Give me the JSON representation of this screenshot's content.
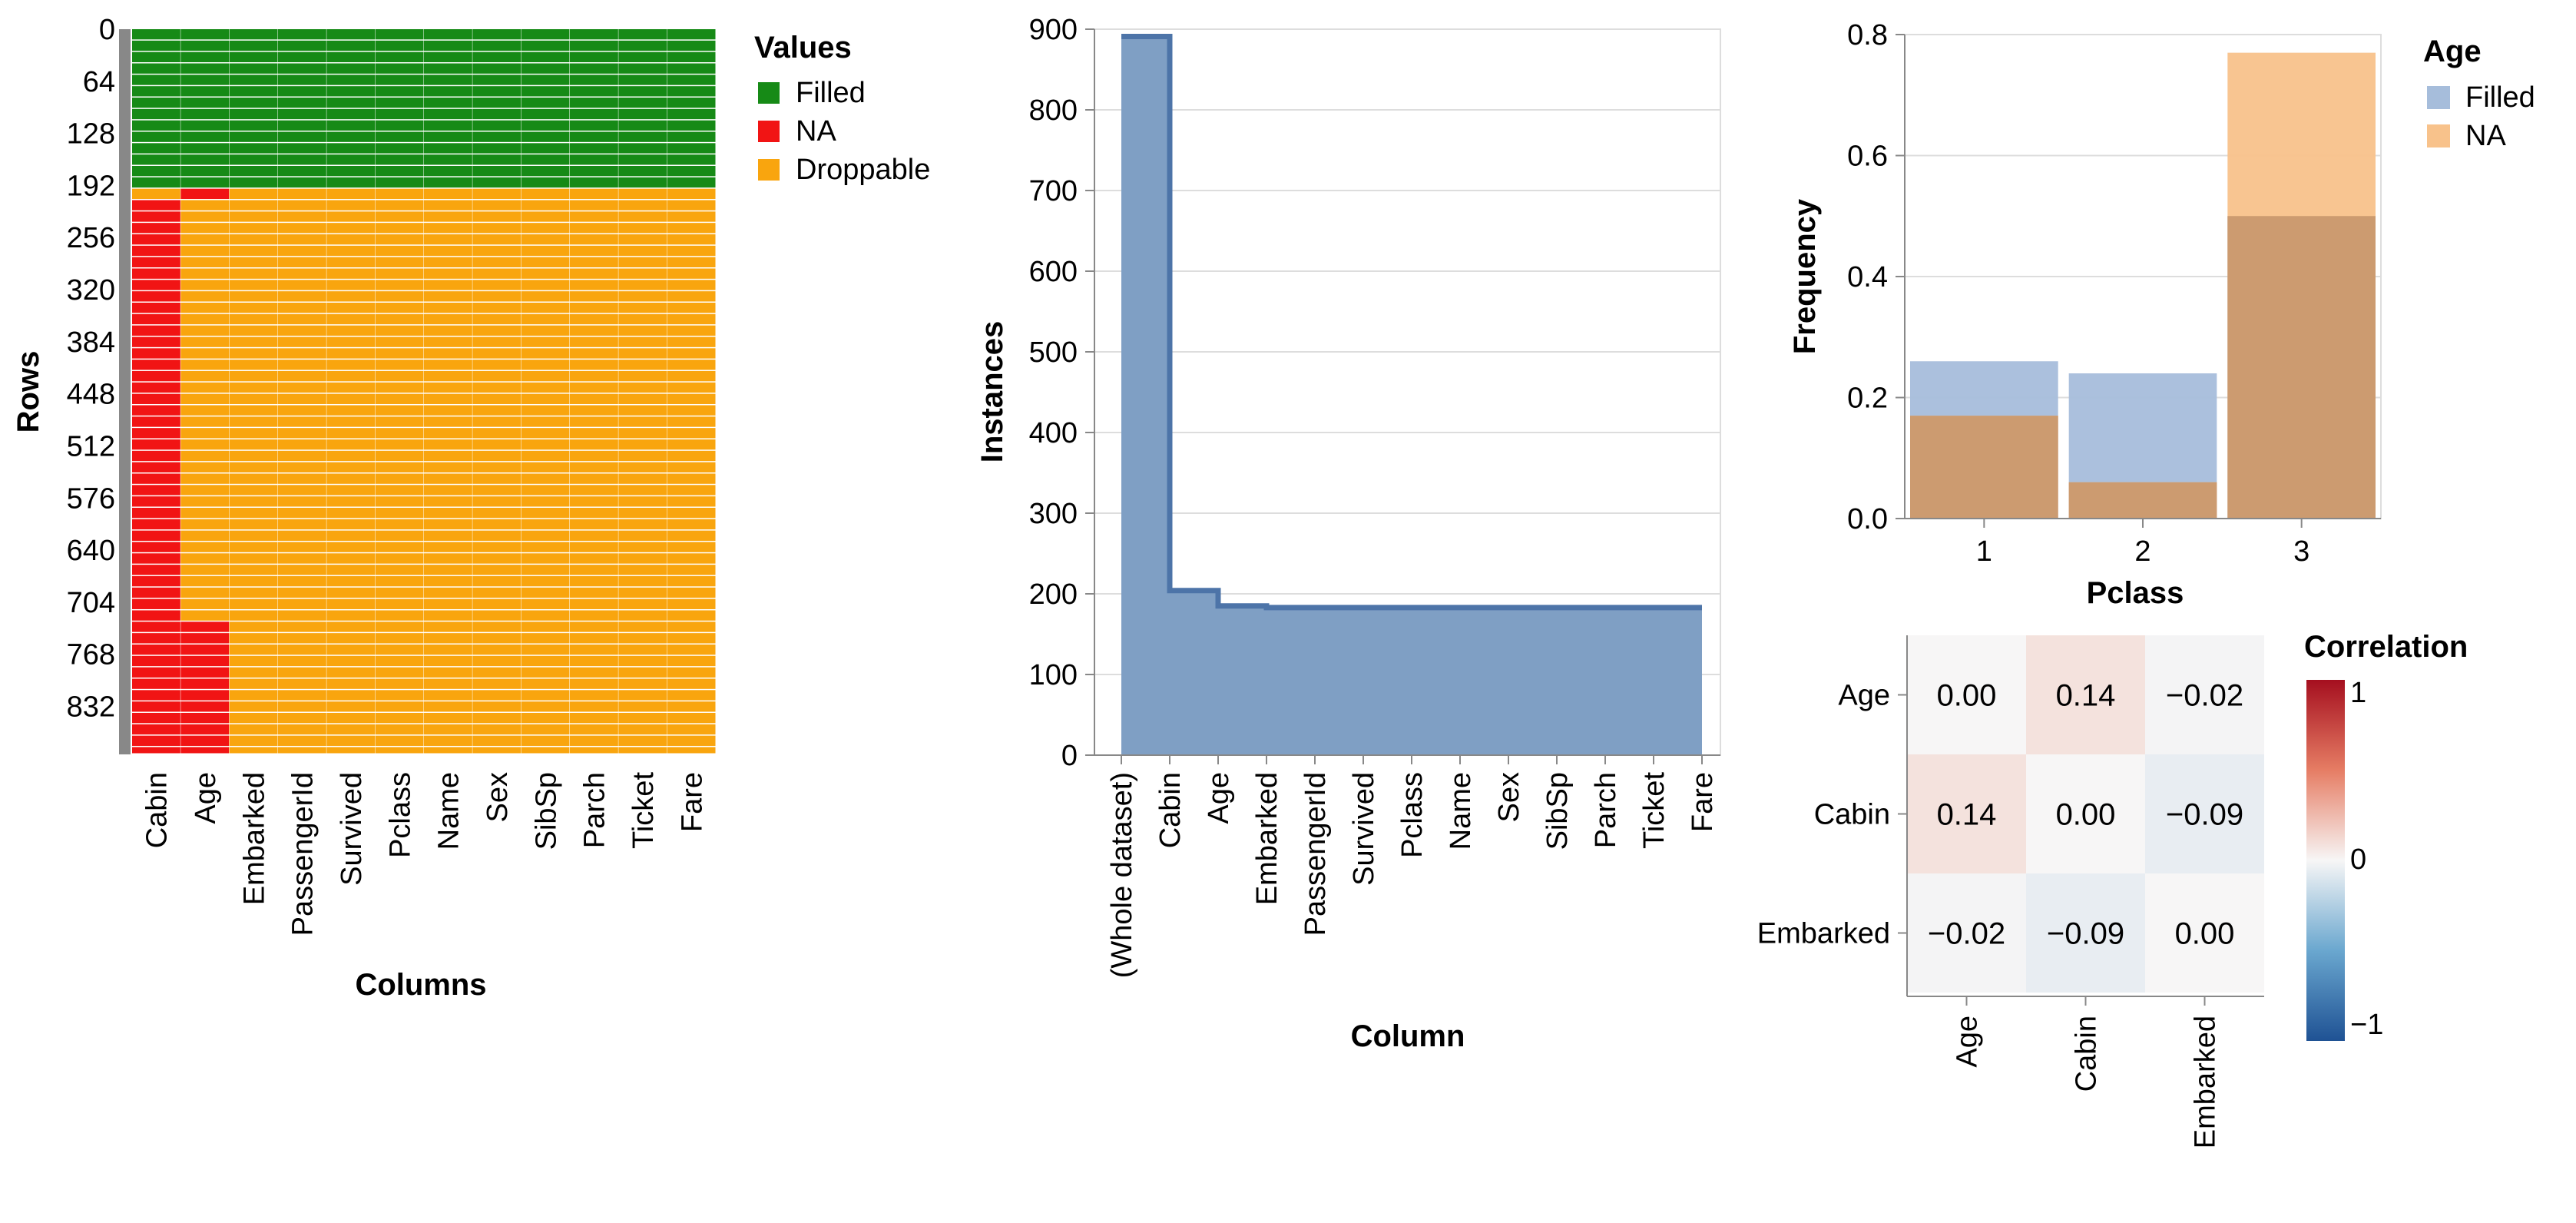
{
  "colors": {
    "filled": "#168a16",
    "na": "#f11414",
    "droppable": "#f9a50e",
    "step_fill": "#7f9fc4",
    "step_line": "#4d74a8",
    "age_filled": "#a6bddb",
    "age_na": "#f8c28b",
    "overlap": "#cc9b70",
    "left_strip": "#888888"
  },
  "chart_data": [
    {
      "type": "heatmap",
      "id": "missingness-matrix",
      "xlabel": "Columns",
      "ylabel": "Rows",
      "columns": [
        "Cabin",
        "Age",
        "Embarked",
        "PassengerId",
        "Survived",
        "Pclass",
        "Name",
        "Sex",
        "SibSp",
        "Parch",
        "Ticket",
        "Fare"
      ],
      "row_ticks": [
        "0",
        "64",
        "128",
        "192",
        "256",
        "320",
        "384",
        "448",
        "512",
        "576",
        "640",
        "704",
        "768",
        "832"
      ],
      "row_count": 891,
      "row_band": 14,
      "filled_rows": 183,
      "embarked_na_rows": [
        183,
        185
      ],
      "na_ranges": {
        "Cabin": [
          [
            204,
            891
          ]
        ],
        "Age": [
          [
            183,
            204
          ],
          [
            719,
            891
          ]
        ],
        "Embarked": []
      },
      "first_na_row_cabin": 183,
      "legend_title": "Values",
      "legend": [
        "Filled",
        "NA",
        "Droppable"
      ]
    },
    {
      "type": "area",
      "id": "instances-step",
      "xlabel": "Column",
      "ylabel": "Instances",
      "categories": [
        "(Whole dataset)",
        "Cabin",
        "Age",
        "Embarked",
        "PassengerId",
        "Survived",
        "Pclass",
        "Name",
        "Sex",
        "SibSp",
        "Parch",
        "Ticket",
        "Fare"
      ],
      "values": [
        891,
        204,
        185,
        183,
        183,
        183,
        183,
        183,
        183,
        183,
        183,
        183,
        183
      ],
      "ylim": [
        0,
        900
      ],
      "yticks": [
        "0",
        "100",
        "200",
        "300",
        "400",
        "500",
        "600",
        "700",
        "800",
        "900"
      ]
    },
    {
      "type": "bar",
      "id": "age-by-pclass",
      "xlabel": "Pclass",
      "ylabel": "Frequency",
      "categories": [
        "1",
        "2",
        "3"
      ],
      "series": [
        {
          "name": "Filled",
          "values": [
            0.26,
            0.24,
            0.5
          ]
        },
        {
          "name": "NA",
          "values": [
            0.17,
            0.06,
            0.77
          ]
        }
      ],
      "ylim": [
        0,
        0.8
      ],
      "yticks": [
        "0.0",
        "0.2",
        "0.4",
        "0.6",
        "0.8"
      ],
      "legend_title": "Age",
      "legend": [
        "Filled",
        "NA"
      ]
    },
    {
      "type": "heatmap",
      "id": "na-correlation",
      "labels": [
        "Age",
        "Cabin",
        "Embarked"
      ],
      "matrix": [
        [
          0.0,
          0.14,
          -0.02
        ],
        [
          0.14,
          0.0,
          -0.09
        ],
        [
          -0.02,
          -0.09,
          0.0
        ]
      ],
      "cell_text": [
        [
          "0.00",
          "0.14",
          "−0.02"
        ],
        [
          "0.14",
          "0.00",
          "−0.09"
        ],
        [
          "−0.02",
          "−0.09",
          "0.00"
        ]
      ],
      "legend_title": "Correlation",
      "legend_ticks": [
        "1",
        "0",
        "−1"
      ],
      "range": [
        -1,
        1
      ]
    }
  ]
}
